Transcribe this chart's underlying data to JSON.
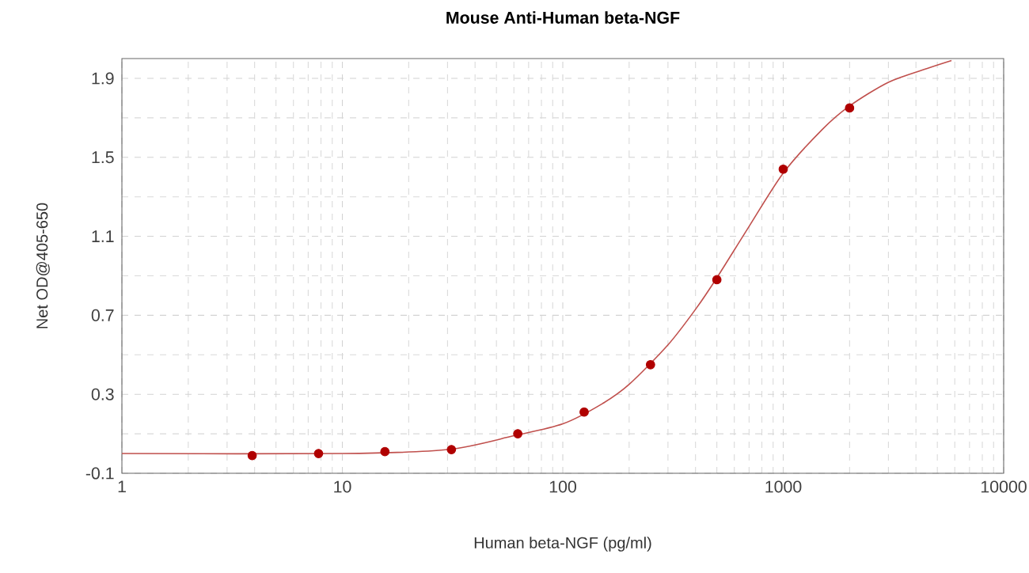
{
  "chart_data": {
    "type": "scatter",
    "title": "Mouse Anti-Human beta-NGF",
    "xlabel": "Human beta-NGF (pg/ml)",
    "ylabel": "Net OD@405-650",
    "log": "x",
    "grid": true,
    "xlim": [
      1,
      10000
    ],
    "ylim": [
      -0.1,
      2.0
    ],
    "xticks": [
      1,
      10,
      100,
      1000,
      10000
    ],
    "yticks": [
      -0.1,
      0.3,
      0.7,
      1.1,
      1.5,
      1.9
    ],
    "series": [
      {
        "marker": "circle",
        "color": "#b00000",
        "x": [
          3.9,
          7.8,
          15.6,
          31.25,
          62.5,
          125,
          250,
          500,
          1000,
          2000
        ],
        "values": [
          -0.01,
          0.0,
          0.01,
          0.02,
          0.1,
          0.21,
          0.45,
          0.88,
          1.44,
          1.75
        ]
      },
      {
        "type": "line",
        "marker": "none",
        "line_style": "solid",
        "color": "#c0504d",
        "x": [
          1,
          10,
          30,
          60,
          100,
          150,
          200,
          300,
          400,
          500,
          700,
          1000,
          1500,
          2000,
          3000,
          4500,
          5800
        ],
        "values": [
          0.0,
          0.0,
          0.02,
          0.09,
          0.15,
          0.25,
          0.35,
          0.55,
          0.73,
          0.89,
          1.15,
          1.42,
          1.64,
          1.76,
          1.88,
          1.95,
          1.99
        ]
      }
    ]
  }
}
